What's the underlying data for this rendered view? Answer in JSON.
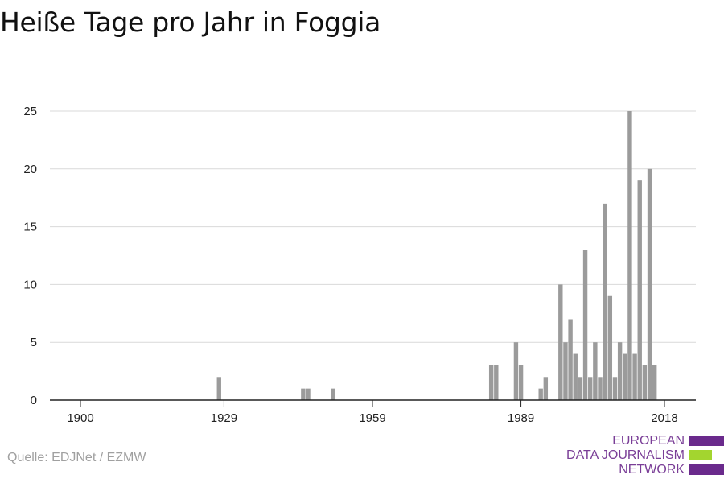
{
  "title": "Heiße Tage pro Jahr in Foggia",
  "source": "Quelle: EDJNet / EZMW",
  "logo": {
    "lines": [
      "EUROPEAN",
      "DATA JOURNALISM",
      "NETWORK"
    ]
  },
  "colors": {
    "bar": "#9b9b9b",
    "grid": "#d9d9d9",
    "axis": "#222222",
    "tick_text": "#222222",
    "source_text": "#a0a0a0",
    "logo_text": "#7a3e97",
    "logo_purple": "#6a2a8c",
    "logo_green": "#a3d52f"
  },
  "chart_data": {
    "type": "bar",
    "title": "Heiße Tage pro Jahr in Foggia",
    "xlabel": "",
    "ylabel": "",
    "xlim": [
      1900,
      2018
    ],
    "ylim": [
      0,
      25
    ],
    "yticks": [
      0,
      5,
      10,
      15,
      20,
      25
    ],
    "xticks": [
      1900,
      1929,
      1959,
      1989,
      2018
    ],
    "grid": true,
    "x": [
      1928,
      1945,
      1946,
      1951,
      1983,
      1984,
      1988,
      1989,
      1993,
      1994,
      1997,
      1998,
      1999,
      2000,
      2001,
      2002,
      2003,
      2004,
      2005,
      2006,
      2007,
      2008,
      2009,
      2010,
      2011,
      2012,
      2013,
      2014,
      2015,
      2016,
      2017,
      2018
    ],
    "values": [
      2,
      1,
      1,
      1,
      3,
      3,
      5,
      3,
      1,
      2,
      10,
      5,
      7,
      4,
      2,
      13,
      2,
      5,
      2,
      17,
      9,
      2,
      5,
      4,
      25,
      4,
      19,
      3,
      20,
      3,
      0,
      0
    ]
  }
}
